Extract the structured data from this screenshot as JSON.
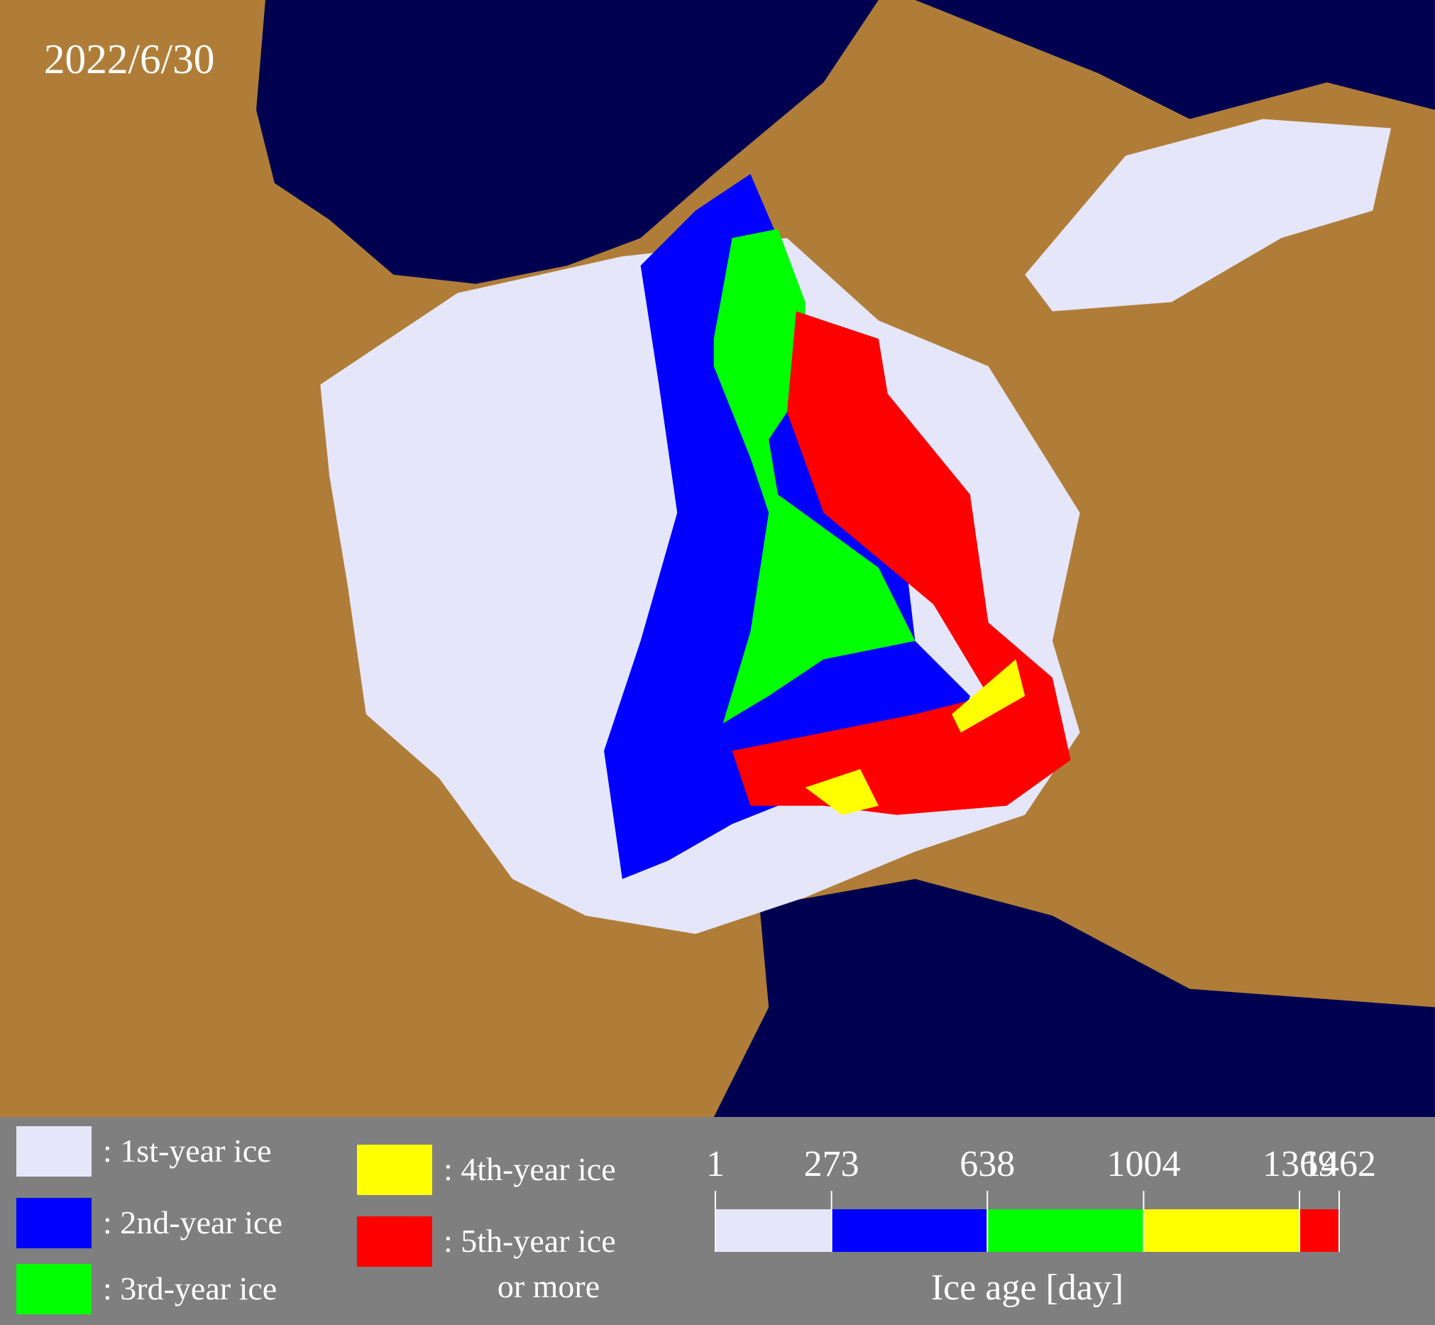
{
  "map": {
    "date": "2022/6/30"
  },
  "legend": {
    "items": [
      {
        "lines": [
          ": 1st-year ice"
        ],
        "color": "#e6e6fa"
      },
      {
        "lines": [
          ": 2nd-year ice"
        ],
        "color": "#0000ff"
      },
      {
        "lines": [
          ": 3rd-year ice"
        ],
        "color": "#00ff00"
      },
      {
        "lines": [
          ": 4th-year ice"
        ],
        "color": "#ffff00"
      },
      {
        "lines": [
          ": 5th-year ice",
          "or more"
        ],
        "color": "#ff0000"
      }
    ]
  },
  "colorbar": {
    "label": "Ice age [day]",
    "range": [
      1,
      1462
    ],
    "ticks": [
      1,
      273,
      638,
      1004,
      1369,
      1462
    ]
  }
}
